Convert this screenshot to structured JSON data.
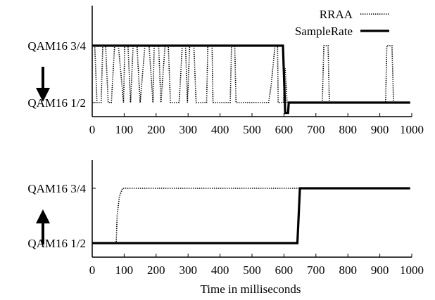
{
  "chart_data": [
    {
      "type": "line",
      "xlabel": "",
      "xlim": [
        0,
        1000
      ],
      "x_ticks": [
        "0",
        "100",
        "200",
        "300",
        "400",
        "500",
        "600",
        "700",
        "800",
        "900",
        "1000"
      ],
      "y_levels": [
        "QAM16 1/2",
        "QAM16 3/4"
      ],
      "arrow": "down",
      "legend": {
        "position": "top-right",
        "entries": [
          "RRAA",
          "SampleRate"
        ]
      },
      "series": [
        {
          "name": "RRAA",
          "style": "dotted",
          "points": [
            [
              0,
              1
            ],
            [
              8,
              1
            ],
            [
              15,
              0
            ],
            [
              28,
              0
            ],
            [
              33,
              1
            ],
            [
              42,
              1
            ],
            [
              50,
              0
            ],
            [
              60,
              0
            ],
            [
              70,
              1
            ],
            [
              82,
              1
            ],
            [
              98,
              0
            ],
            [
              102,
              1
            ],
            [
              112,
              1
            ],
            [
              120,
              0
            ],
            [
              128,
              1
            ],
            [
              140,
              1
            ],
            [
              150,
              0
            ],
            [
              165,
              1
            ],
            [
              178,
              1
            ],
            [
              190,
              0
            ],
            [
              194,
              1
            ],
            [
              208,
              1
            ],
            [
              215,
              0
            ],
            [
              228,
              1
            ],
            [
              238,
              1
            ],
            [
              245,
              0
            ],
            [
              272,
              0
            ],
            [
              282,
              1
            ],
            [
              292,
              1
            ],
            [
              298,
              0
            ],
            [
              305,
              1
            ],
            [
              318,
              1
            ],
            [
              325,
              0
            ],
            [
              358,
              0
            ],
            [
              362,
              1
            ],
            [
              375,
              1
            ],
            [
              378,
              0
            ],
            [
              432,
              0
            ],
            [
              436,
              1
            ],
            [
              446,
              1
            ],
            [
              450,
              0
            ],
            [
              552,
              0
            ],
            [
              560,
              0.3
            ],
            [
              572,
              1
            ],
            [
              580,
              1
            ],
            [
              582,
              0
            ],
            [
              598,
              0
            ],
            [
              604,
              0.6
            ],
            [
              610,
              0
            ],
            [
              720,
              0
            ],
            [
              725,
              1
            ],
            [
              738,
              1
            ],
            [
              742,
              0
            ],
            [
              918,
              0
            ],
            [
              922,
              1
            ],
            [
              938,
              1
            ],
            [
              943,
              0
            ],
            [
              995,
              0
            ]
          ]
        },
        {
          "name": "SampleRate",
          "style": "solid",
          "points": [
            [
              0,
              1
            ],
            [
              597,
              1
            ],
            [
              604,
              -0.18
            ],
            [
              613,
              -0.18
            ],
            [
              615,
              0
            ],
            [
              995,
              0
            ]
          ]
        }
      ]
    },
    {
      "type": "line",
      "xlabel": "Time in milliseconds",
      "xlim": [
        0,
        1000
      ],
      "x_ticks": [
        "0",
        "100",
        "200",
        "300",
        "400",
        "500",
        "600",
        "700",
        "800",
        "900",
        "1000"
      ],
      "y_levels": [
        "QAM16 1/2",
        "QAM16 3/4"
      ],
      "arrow": "up",
      "series": [
        {
          "name": "RRAA",
          "style": "dotted",
          "points": [
            [
              0,
              0
            ],
            [
              75,
              0
            ],
            [
              78,
              0.5
            ],
            [
              85,
              0.85
            ],
            [
              95,
              1
            ],
            [
              995,
              1
            ]
          ]
        },
        {
          "name": "SampleRate",
          "style": "solid",
          "points": [
            [
              0,
              0
            ],
            [
              642,
              0
            ],
            [
              650,
              1
            ],
            [
              995,
              1
            ]
          ]
        }
      ]
    }
  ]
}
